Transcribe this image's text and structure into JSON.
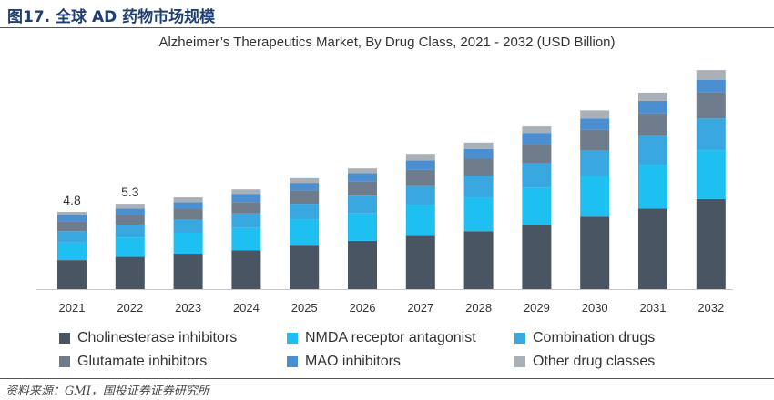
{
  "figure_title": "图17. 全球 AD 药物市场规模",
  "source_note": "资料来源：GMI，国投证券证券研究所",
  "colors": {
    "series": [
      "#4a5563",
      "#1ec0f2",
      "#3aa8e0",
      "#6f7c8c",
      "#4b8fd0",
      "#a9b0b8"
    ],
    "rule": "#555555",
    "figure_title": "#1f3f73"
  },
  "chart_data": {
    "type": "bar",
    "stacked": true,
    "title": "Alzheimer’s Therapeutics Market, By Drug Class, 2021 - 2032 (USD Billion)",
    "xlabel": "",
    "ylabel": "",
    "ylim": [
      0,
      14
    ],
    "grid": false,
    "legend_position": "bottom",
    "categories": [
      "2021",
      "2022",
      "2023",
      "2024",
      "2025",
      "2026",
      "2027",
      "2028",
      "2029",
      "2030",
      "2031",
      "2032"
    ],
    "series": [
      {
        "name": "Cholinesterase inhibitors",
        "values": [
          1.8,
          2.0,
          2.2,
          2.4,
          2.7,
          3.0,
          3.3,
          3.6,
          4.0,
          4.5,
          5.0,
          5.6
        ]
      },
      {
        "name": "NMDA receptor antagonist",
        "values": [
          1.1,
          1.2,
          1.3,
          1.4,
          1.6,
          1.7,
          1.9,
          2.1,
          2.3,
          2.5,
          2.7,
          3.0
        ]
      },
      {
        "name": "Combination drugs",
        "values": [
          0.7,
          0.8,
          0.8,
          0.9,
          1.0,
          1.1,
          1.2,
          1.3,
          1.5,
          1.6,
          1.8,
          2.0
        ]
      },
      {
        "name": "Glutamate inhibitors",
        "values": [
          0.6,
          0.6,
          0.7,
          0.7,
          0.8,
          0.9,
          1.0,
          1.1,
          1.2,
          1.3,
          1.4,
          1.6
        ]
      },
      {
        "name": "MAO inhibitors",
        "values": [
          0.4,
          0.4,
          0.4,
          0.5,
          0.5,
          0.5,
          0.6,
          0.6,
          0.7,
          0.7,
          0.8,
          0.8
        ]
      },
      {
        "name": "Other drug classes",
        "values": [
          0.2,
          0.3,
          0.3,
          0.3,
          0.3,
          0.3,
          0.4,
          0.4,
          0.4,
          0.5,
          0.5,
          0.6
        ]
      }
    ],
    "data_labels": [
      "4.8",
      "5.3",
      "",
      "",
      "",
      "",
      "",
      "",
      "",
      "",
      "",
      ""
    ]
  }
}
